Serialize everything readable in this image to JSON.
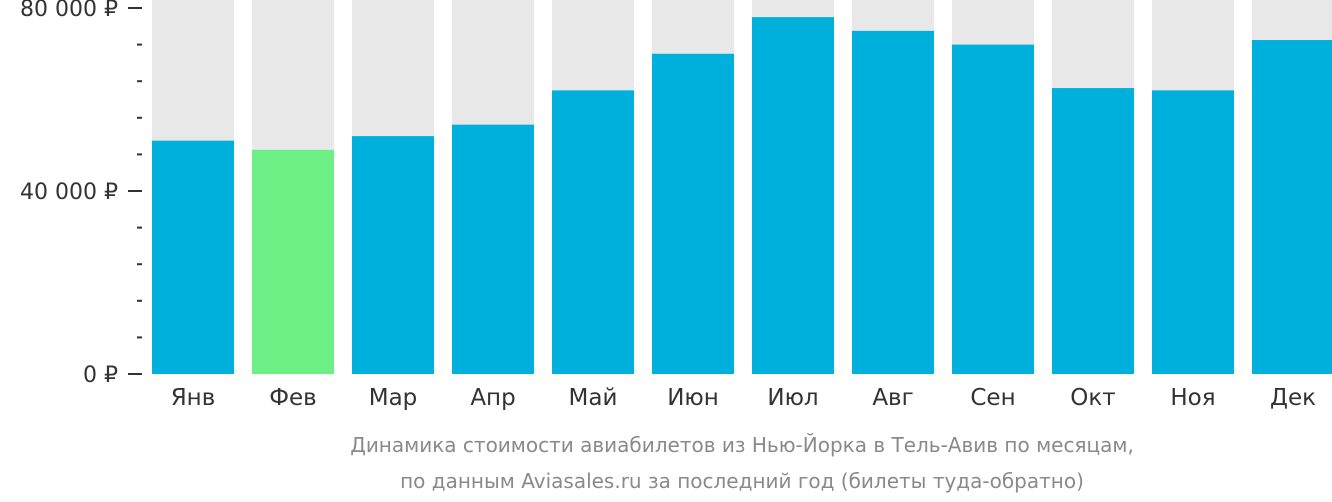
{
  "chart_data": {
    "type": "bar",
    "title": "",
    "caption": [
      "Динамика стоимости авиабилетов из Нью-Йорка в Тель-Авив по месяцам,",
      "по данным Aviasales.ru за последний год (билеты туда-обратно)"
    ],
    "categories": [
      "Янв",
      "Фев",
      "Мар",
      "Апр",
      "Май",
      "Июн",
      "Июл",
      "Авг",
      "Сен",
      "Окт",
      "Ноя",
      "Дек"
    ],
    "values": [
      51000,
      49000,
      52000,
      54500,
      62000,
      70000,
      78000,
      75000,
      72000,
      62500,
      62000,
      73000
    ],
    "highlight_index": 1,
    "ylim": [
      0,
      85000
    ],
    "yticks_labeled": [
      {
        "value": 0,
        "label": "0 ₽"
      },
      {
        "value": 40000,
        "label": "40 000 ₽"
      },
      {
        "value": 80000,
        "label": "80 000 ₽"
      }
    ],
    "minor_tick_step": 8000,
    "colors": {
      "bar": "#00b0dc",
      "highlight": "#6cf086",
      "background_bar": "#e8e8e8",
      "axis": "#333333",
      "caption": "#8a8a8a"
    },
    "grid": false,
    "legend": "none"
  }
}
